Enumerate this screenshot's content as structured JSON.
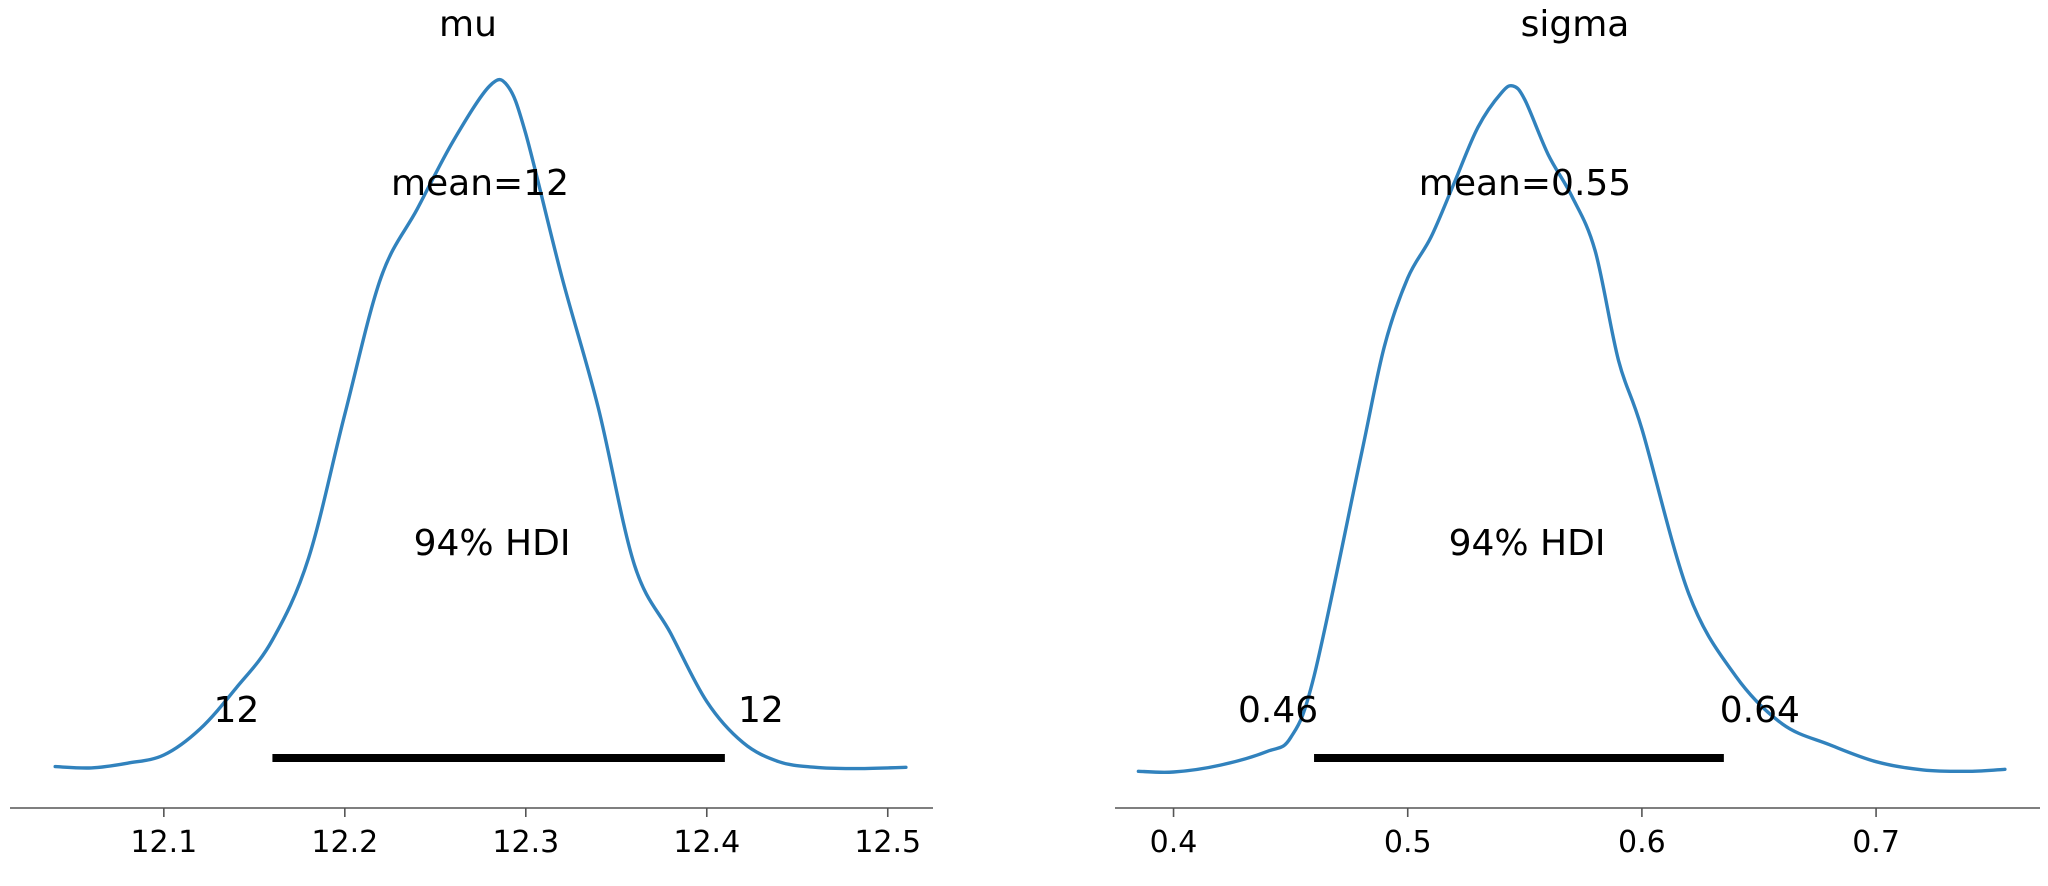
{
  "chart_data": [
    {
      "type": "line",
      "title": "mu",
      "mean_label": "mean=12",
      "hdi_label": "94% HDI",
      "hdi_low_label": "12",
      "hdi_high_label": "12",
      "hdi": [
        12.16,
        12.41
      ],
      "xlim": [
        12.015,
        12.525
      ],
      "ylim": [
        0,
        1.06
      ],
      "xticks": [
        12.1,
        12.2,
        12.3,
        12.4,
        12.5
      ],
      "xtick_labels": [
        "12.1",
        "12.2",
        "12.3",
        "12.4",
        "12.5"
      ],
      "x": [
        12.04,
        12.06,
        12.08,
        12.1,
        12.12,
        12.14,
        12.16,
        12.18,
        12.2,
        12.22,
        12.24,
        12.26,
        12.28,
        12.29,
        12.3,
        12.32,
        12.34,
        12.36,
        12.38,
        12.4,
        12.42,
        12.44,
        12.46,
        12.48,
        12.5,
        12.51
      ],
      "density": [
        0.005,
        0.003,
        0.01,
        0.022,
        0.06,
        0.12,
        0.19,
        0.31,
        0.52,
        0.72,
        0.82,
        0.92,
        1.0,
        1.0,
        0.93,
        0.72,
        0.53,
        0.3,
        0.2,
        0.1,
        0.04,
        0.012,
        0.004,
        0.002,
        0.003,
        0.004
      ],
      "color": "#3182bd"
    },
    {
      "type": "line",
      "title": "sigma",
      "mean_label": "mean=0.55",
      "hdi_label": "94% HDI",
      "hdi_low_label": "0.46",
      "hdi_high_label": "0.64",
      "hdi": [
        0.46,
        0.635
      ],
      "xlim": [
        0.375,
        0.77
      ],
      "ylim": [
        0,
        1.06
      ],
      "xticks": [
        0.4,
        0.5,
        0.6,
        0.7
      ],
      "xtick_labels": [
        "0.4",
        "0.5",
        "0.6",
        "0.7"
      ],
      "x": [
        0.385,
        0.4,
        0.42,
        0.44,
        0.45,
        0.46,
        0.48,
        0.49,
        0.5,
        0.51,
        0.52,
        0.53,
        0.54,
        0.545,
        0.55,
        0.56,
        0.57,
        0.58,
        0.59,
        0.6,
        0.62,
        0.64,
        0.66,
        0.68,
        0.7,
        0.72,
        0.74,
        0.755
      ],
      "density": [
        0.001,
        0.0,
        0.01,
        0.03,
        0.05,
        0.14,
        0.46,
        0.62,
        0.72,
        0.78,
        0.86,
        0.94,
        0.99,
        1.0,
        0.98,
        0.9,
        0.84,
        0.76,
        0.6,
        0.5,
        0.26,
        0.14,
        0.07,
        0.04,
        0.015,
        0.003,
        0.001,
        0.004
      ],
      "color": "#3182bd"
    }
  ]
}
